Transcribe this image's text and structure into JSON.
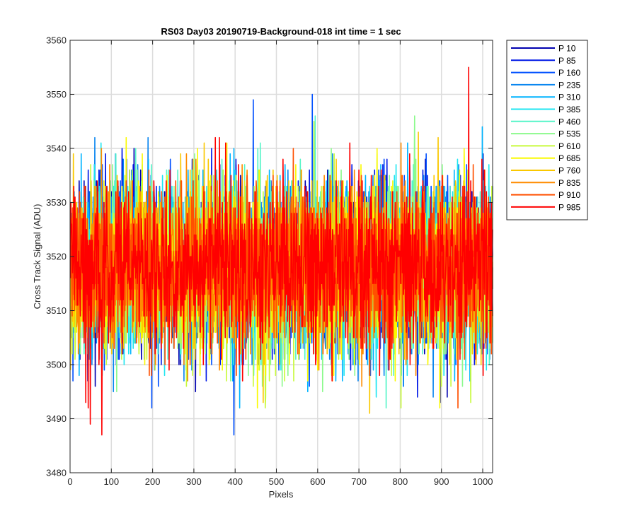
{
  "chart_data": {
    "type": "line",
    "title": "RS03 Day03 20190719-Background-018 int time = 1 sec",
    "xlabel": "Pixels",
    "ylabel": "Cross Track Signal (ADU)",
    "xlim": [
      0,
      1024
    ],
    "ylim": [
      3480,
      3560
    ],
    "xticks": [
      0,
      100,
      200,
      300,
      400,
      500,
      600,
      700,
      800,
      900,
      1000
    ],
    "yticks": [
      3480,
      3490,
      3500,
      3510,
      3520,
      3530,
      3540,
      3550,
      3560
    ],
    "xtick_labels": [
      "0",
      "100",
      "200",
      "300",
      "400",
      "500",
      "600",
      "700",
      "800",
      "900",
      "1000"
    ],
    "ytick_labels": [
      "3480",
      "3490",
      "3500",
      "3510",
      "3520",
      "3530",
      "3540",
      "3550",
      "3560"
    ],
    "grid": true,
    "legend_position": "outside-top-right",
    "x_points": 1024,
    "noise_mean": 3518,
    "noise_sd": 7.5,
    "series": [
      {
        "name": "P 10",
        "color": "#0000b0"
      },
      {
        "name": "P 85",
        "color": "#0018e6"
      },
      {
        "name": "P 160",
        "color": "#0050ff"
      },
      {
        "name": "P 235",
        "color": "#0a86f0"
      },
      {
        "name": "P 310",
        "color": "#00b4ff"
      },
      {
        "name": "P 385",
        "color": "#1ee6f0"
      },
      {
        "name": "P 460",
        "color": "#55f5c8"
      },
      {
        "name": "P 535",
        "color": "#8cfa8c"
      },
      {
        "name": "P 610",
        "color": "#c8fa3c"
      },
      {
        "name": "P 685",
        "color": "#fafa00"
      },
      {
        "name": "P 760",
        "color": "#fac800"
      },
      {
        "name": "P 835",
        "color": "#ff8c00"
      },
      {
        "name": "P 910",
        "color": "#ff5000"
      },
      {
        "name": "P 985",
        "color": "#ff0000"
      }
    ],
    "extremes": [
      {
        "series": "P 160",
        "x": 396,
        "y": 3487
      },
      {
        "series": "P 985",
        "x": 76,
        "y": 3487
      },
      {
        "series": "P 985",
        "x": 48,
        "y": 3489
      },
      {
        "series": "P 160",
        "x": 586,
        "y": 3550
      },
      {
        "series": "P 160",
        "x": 443,
        "y": 3549
      },
      {
        "series": "P 985",
        "x": 965,
        "y": 3555
      },
      {
        "series": "P 760",
        "x": 725,
        "y": 3491
      },
      {
        "series": "P 610",
        "x": 970,
        "y": 3493
      }
    ]
  }
}
